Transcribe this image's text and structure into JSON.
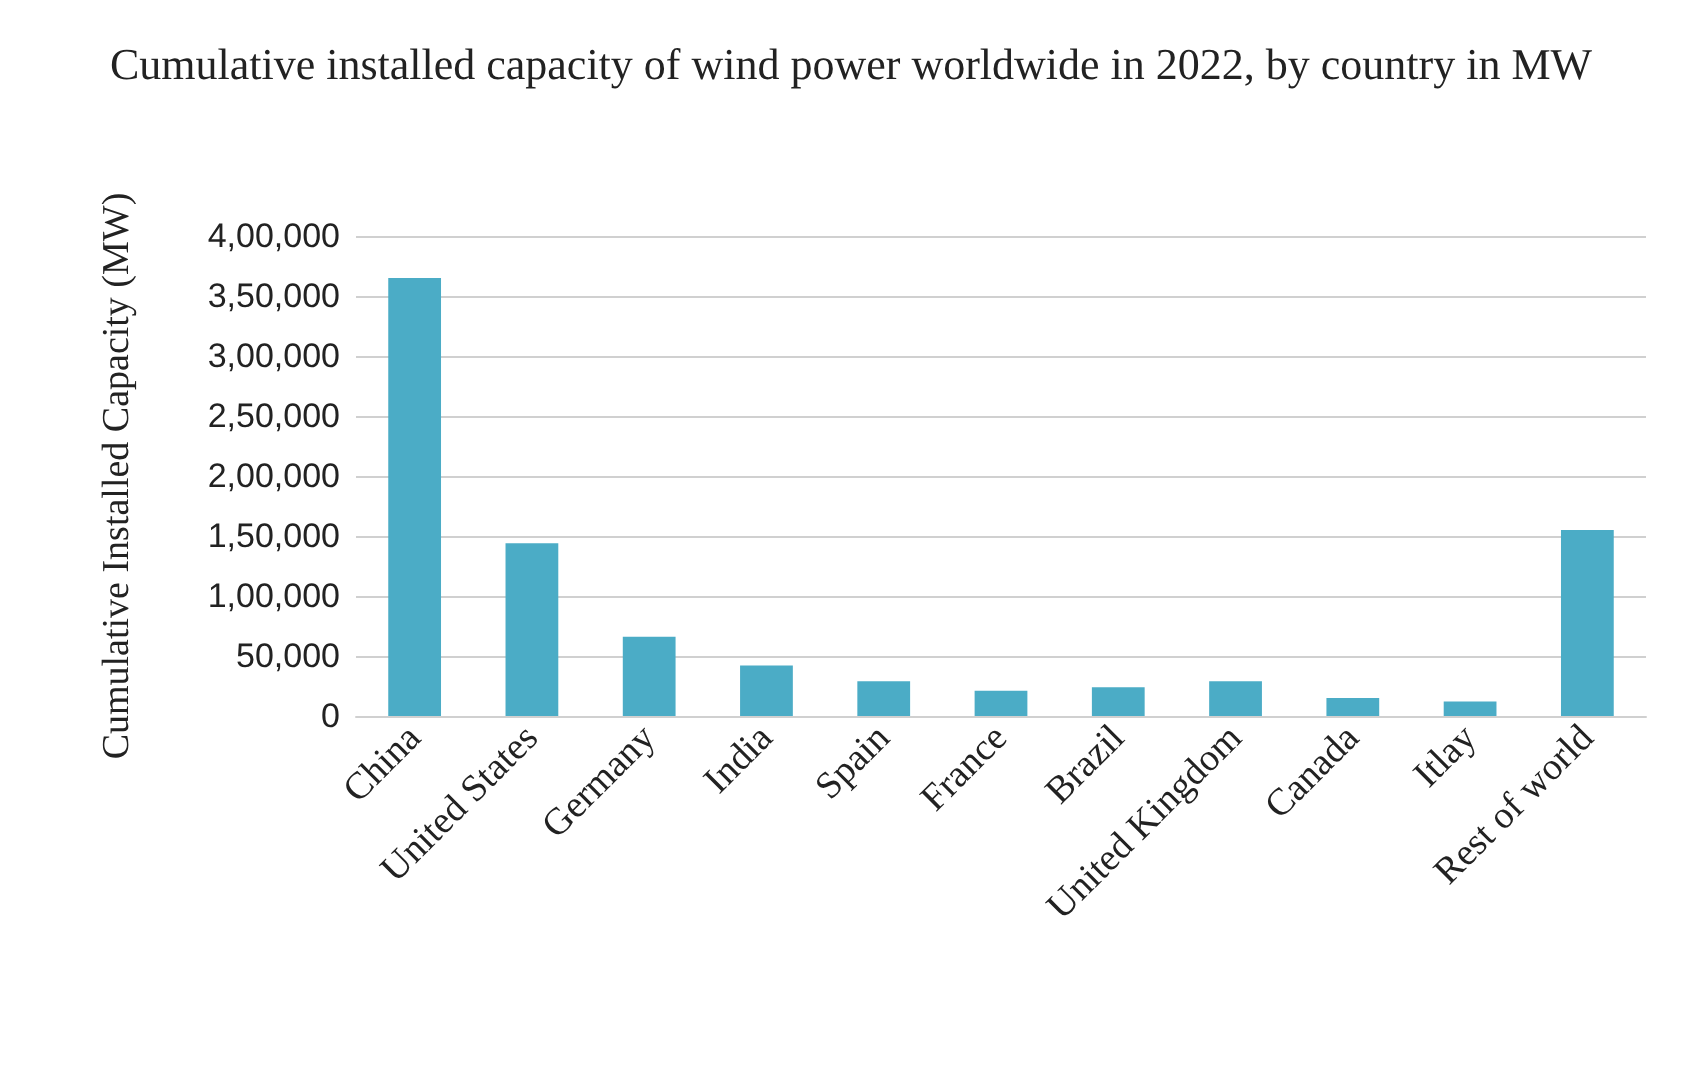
{
  "chart_data": {
    "type": "bar",
    "title": "Cumulative installed capacity of wind power worldwide in 2022, by country in MW",
    "ylabel": "Cumulative Installed Capacity (MW)",
    "categories": [
      "China",
      "United States",
      "Germany",
      "India",
      "Spain",
      "France",
      "Brazil",
      "United Kingdom",
      "Canada",
      "Itlay",
      "Rest of world"
    ],
    "values": [
      365000,
      144000,
      66000,
      42000,
      29000,
      21000,
      24000,
      29000,
      15000,
      12000,
      155000
    ],
    "color": "#4bacc6",
    "ylim": [
      0,
      400000
    ],
    "yticks": [
      {
        "value": 0,
        "label": "0"
      },
      {
        "value": 50000,
        "label": "50,000"
      },
      {
        "value": 100000,
        "label": "1,00,000"
      },
      {
        "value": 150000,
        "label": "1,50,000"
      },
      {
        "value": 200000,
        "label": "2,00,000"
      },
      {
        "value": 250000,
        "label": "2,50,000"
      },
      {
        "value": 300000,
        "label": "3,00,000"
      },
      {
        "value": 350000,
        "label": "3,50,000"
      },
      {
        "value": 400000,
        "label": "4,00,000"
      }
    ],
    "grid": "y"
  }
}
